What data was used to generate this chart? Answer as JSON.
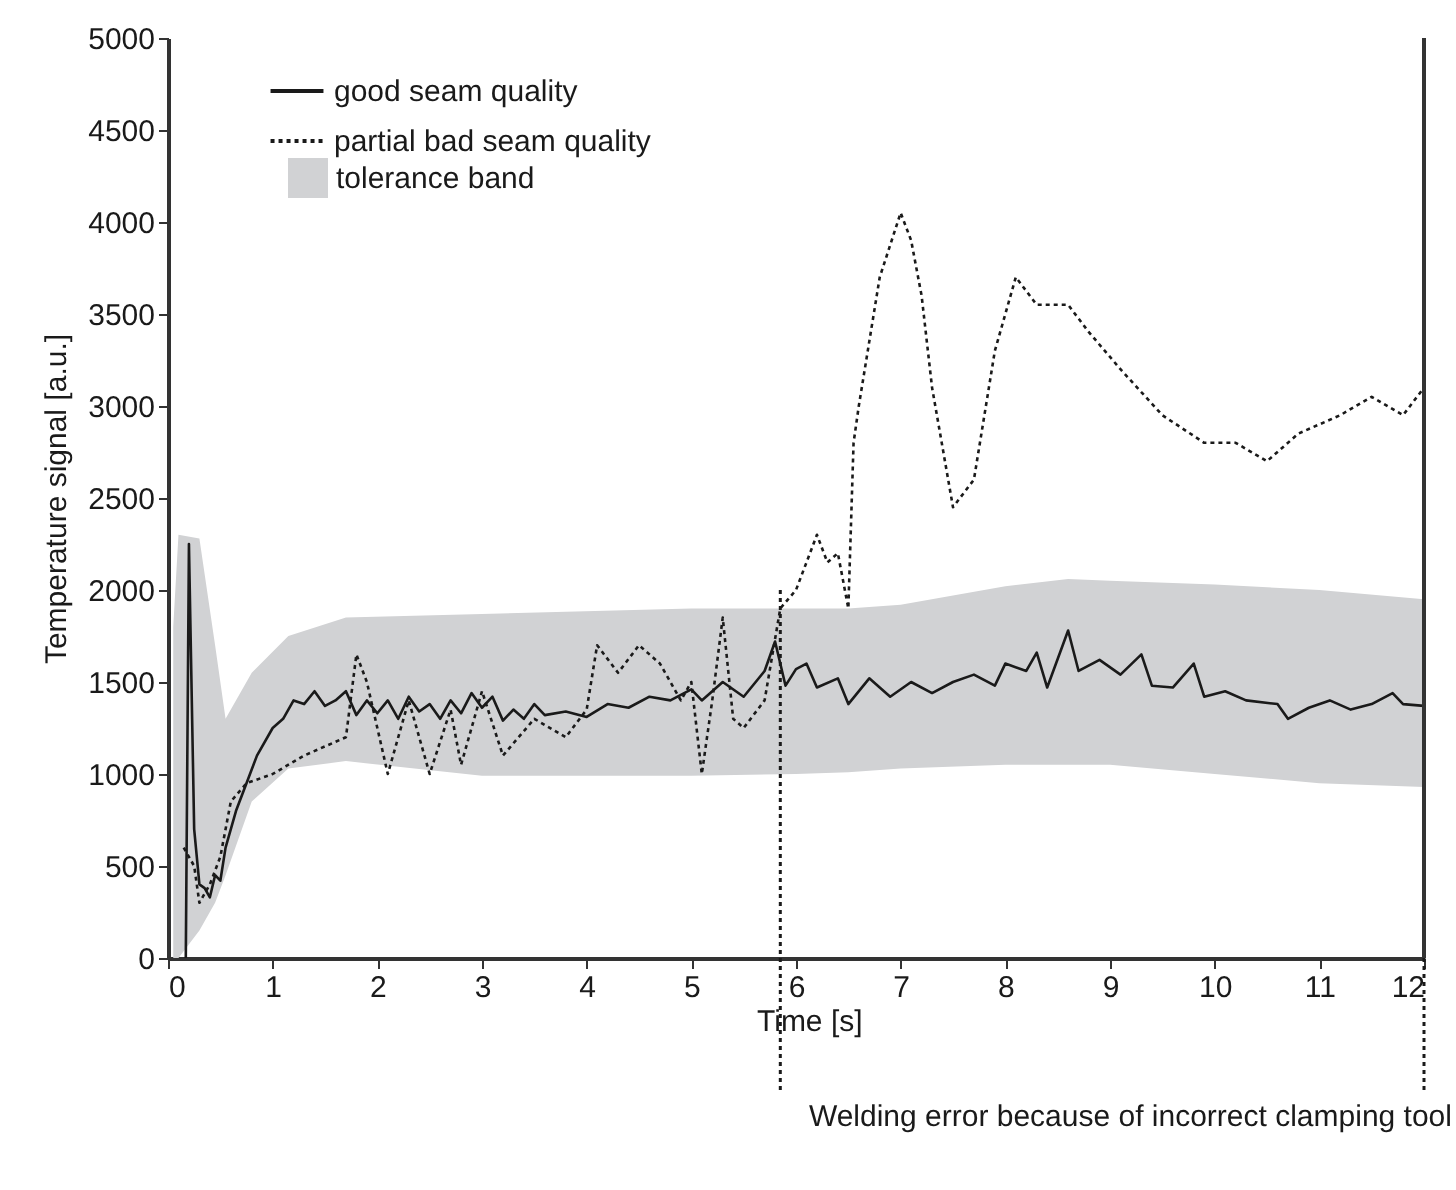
{
  "chart_data": {
    "type": "line",
    "xlabel": "Time  [s]",
    "ylabel": "Temperature signal  [a.u.]",
    "xlim": [
      0,
      12
    ],
    "xticks": [
      0,
      1,
      2,
      3,
      4,
      5,
      6,
      7,
      8,
      9,
      10,
      11,
      12
    ],
    "ylim": [
      0,
      5000
    ],
    "yticks": [
      0,
      500,
      1000,
      1500,
      2000,
      2500,
      3000,
      3500,
      4000,
      4500,
      5000
    ],
    "grid": false,
    "legend": "top left",
    "marker": "none",
    "series": [
      {
        "name": "tolerance band",
        "type": "area",
        "color": "#d1d2d4",
        "x": [
          0.05,
          0.1,
          0.3,
          0.45,
          0.55,
          0.8,
          1.15,
          1.7,
          3,
          5,
          6,
          6.5,
          7,
          8,
          8.6,
          9,
          10,
          11,
          12
        ],
        "values": [
          null,
          null,
          null,
          null,
          null,
          null,
          null,
          null,
          null,
          null,
          null,
          null,
          null,
          null,
          null,
          null,
          null,
          null,
          null
        ],
        "lower": [
          0,
          0,
          150,
          300,
          450,
          850,
          1030,
          1070,
          990,
          990,
          1000,
          1010,
          1030,
          1050,
          1050,
          1050,
          1000,
          950,
          930
        ],
        "upper": [
          1800,
          2300,
          2280,
          1700,
          1300,
          1550,
          1750,
          1850,
          1870,
          1900,
          1900,
          1900,
          1920,
          2020,
          2060,
          2050,
          2030,
          2000,
          1950
        ]
      },
      {
        "name": "good seam quality",
        "line_style": "solid",
        "color": "#1a1a1a",
        "x": [
          0.17,
          0.2,
          0.25,
          0.3,
          0.35,
          0.4,
          0.45,
          0.5,
          0.55,
          0.65,
          0.75,
          0.85,
          1.0,
          1.1,
          1.2,
          1.3,
          1.4,
          1.5,
          1.6,
          1.7,
          1.8,
          1.9,
          2.0,
          2.1,
          2.2,
          2.3,
          2.4,
          2.5,
          2.6,
          2.7,
          2.8,
          2.9,
          3.0,
          3.1,
          3.2,
          3.3,
          3.4,
          3.5,
          3.6,
          3.8,
          4.0,
          4.2,
          4.4,
          4.6,
          4.8,
          5.0,
          5.1,
          5.3,
          5.5,
          5.7,
          5.8,
          5.9,
          6.0,
          6.1,
          6.2,
          6.4,
          6.5,
          6.7,
          6.9,
          7.1,
          7.3,
          7.5,
          7.7,
          7.9,
          8.0,
          8.2,
          8.3,
          8.4,
          8.6,
          8.7,
          8.9,
          9.1,
          9.3,
          9.4,
          9.6,
          9.8,
          9.9,
          10.1,
          10.3,
          10.6,
          10.7,
          10.9,
          11.1,
          11.3,
          11.5,
          11.7,
          11.8,
          12.0
        ],
        "values": [
          0,
          2250,
          700,
          400,
          380,
          330,
          450,
          420,
          600,
          800,
          950,
          1100,
          1250,
          1300,
          1400,
          1380,
          1450,
          1370,
          1400,
          1450,
          1320,
          1400,
          1330,
          1400,
          1300,
          1420,
          1340,
          1380,
          1300,
          1400,
          1330,
          1440,
          1360,
          1420,
          1290,
          1350,
          1300,
          1380,
          1320,
          1340,
          1310,
          1380,
          1360,
          1420,
          1400,
          1460,
          1400,
          1500,
          1420,
          1560,
          1720,
          1480,
          1570,
          1600,
          1470,
          1520,
          1380,
          1520,
          1420,
          1500,
          1440,
          1500,
          1540,
          1480,
          1600,
          1560,
          1660,
          1470,
          1780,
          1560,
          1620,
          1540,
          1650,
          1480,
          1470,
          1600,
          1420,
          1450,
          1400,
          1380,
          1300,
          1360,
          1400,
          1350,
          1380,
          1440,
          1380,
          1370
        ]
      },
      {
        "name": "partial bad seam quality",
        "line_style": "dotted",
        "color": "#1a1a1a",
        "x": [
          0.15,
          0.25,
          0.3,
          0.4,
          0.5,
          0.6,
          0.75,
          1.0,
          1.3,
          1.5,
          1.7,
          1.8,
          1.9,
          2.1,
          2.3,
          2.5,
          2.7,
          2.8,
          3.0,
          3.2,
          3.5,
          3.8,
          4.0,
          4.1,
          4.3,
          4.5,
          4.7,
          4.9,
          5.0,
          5.1,
          5.2,
          5.3,
          5.4,
          5.5,
          5.7,
          5.85,
          6.0,
          6.2,
          6.3,
          6.4,
          6.5,
          6.55,
          6.6,
          6.8,
          7.0,
          7.1,
          7.2,
          7.3,
          7.5,
          7.7,
          7.9,
          8.1,
          8.3,
          8.6,
          8.8,
          9.1,
          9.5,
          9.9,
          10.2,
          10.5,
          10.8,
          11.2,
          11.5,
          11.8,
          12.0
        ],
        "values": [
          600,
          500,
          300,
          400,
          550,
          850,
          950,
          1000,
          1100,
          1150,
          1200,
          1650,
          1500,
          1000,
          1400,
          1000,
          1350,
          1050,
          1450,
          1100,
          1300,
          1200,
          1350,
          1700,
          1550,
          1700,
          1600,
          1400,
          1500,
          1000,
          1400,
          1850,
          1300,
          1250,
          1400,
          1900,
          2000,
          2300,
          2150,
          2200,
          1900,
          2800,
          3000,
          3700,
          4050,
          3900,
          3600,
          3100,
          2450,
          2600,
          3300,
          3700,
          3550,
          3550,
          3400,
          3200,
          2950,
          2800,
          2800,
          2700,
          2850,
          2950,
          3050,
          2950,
          3100
        ]
      }
    ],
    "ref_lines": [
      {
        "axis": "x",
        "value": 5.85,
        "line_style": "dotted",
        "color": "#1a1a1a"
      },
      {
        "axis": "x",
        "value": 12,
        "line_style": "dotted",
        "color": "#1a1a1a"
      }
    ],
    "annotations": [
      "Welding error because of  incorrect clamping tool"
    ]
  }
}
